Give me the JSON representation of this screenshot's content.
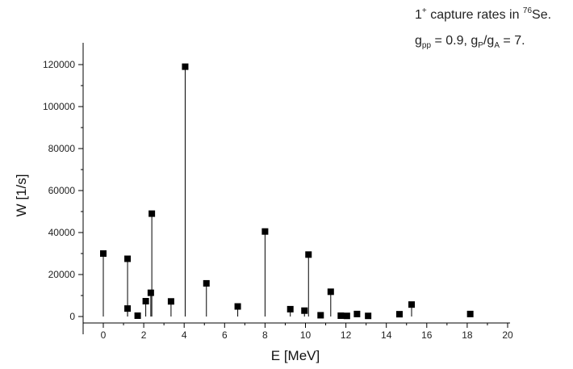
{
  "chart_data": {
    "type": "scatter",
    "style": "stem",
    "xlabel": "E [MeV]",
    "ylabel": "W [1/s]",
    "xlim": [
      -1,
      20
    ],
    "ylim": [
      -8000,
      130000
    ],
    "x_ticks": [
      0,
      2,
      4,
      6,
      8,
      10,
      12,
      14,
      16,
      18,
      20
    ],
    "y_ticks": [
      0,
      20000,
      40000,
      60000,
      80000,
      100000,
      120000
    ],
    "annotation": {
      "line1": {
        "a": "1",
        "b": "+",
        "c": " capture rates in ",
        "d": "76",
        "e": "Se."
      },
      "line2": {
        "a": "g",
        "b": "pp",
        "c": " = 0.9, g",
        "d": "P",
        "e": "/g",
        "f": "A",
        "g": " = 7."
      }
    },
    "points": [
      {
        "x": 0.0,
        "y": 30000
      },
      {
        "x": 1.2,
        "y": 27500
      },
      {
        "x": 1.2,
        "y": 3800
      },
      {
        "x": 1.7,
        "y": 400
      },
      {
        "x": 2.1,
        "y": 7300
      },
      {
        "x": 2.35,
        "y": 11300
      },
      {
        "x": 2.4,
        "y": 49000
      },
      {
        "x": 3.35,
        "y": 7200
      },
      {
        "x": 4.05,
        "y": 119000
      },
      {
        "x": 5.1,
        "y": 15800
      },
      {
        "x": 6.65,
        "y": 4800
      },
      {
        "x": 8.0,
        "y": 40500
      },
      {
        "x": 9.25,
        "y": 3500
      },
      {
        "x": 9.95,
        "y": 2800
      },
      {
        "x": 10.15,
        "y": 29500
      },
      {
        "x": 10.75,
        "y": 600
      },
      {
        "x": 11.25,
        "y": 11800
      },
      {
        "x": 11.75,
        "y": 400
      },
      {
        "x": 12.05,
        "y": 300
      },
      {
        "x": 12.55,
        "y": 1200
      },
      {
        "x": 13.1,
        "y": 300
      },
      {
        "x": 14.65,
        "y": 1100
      },
      {
        "x": 15.25,
        "y": 5700
      },
      {
        "x": 18.15,
        "y": 1200
      }
    ]
  }
}
